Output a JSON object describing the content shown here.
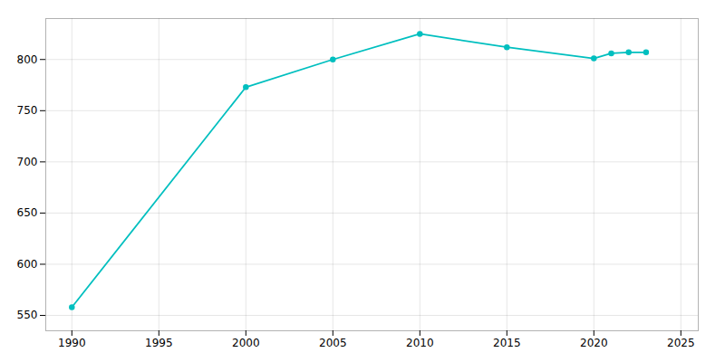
{
  "chart_data": {
    "type": "line",
    "x": [
      1990,
      2000,
      2005,
      2010,
      2015,
      2020,
      2021,
      2022,
      2023
    ],
    "values": [
      558,
      773,
      800,
      825,
      812,
      801,
      806,
      807,
      807
    ],
    "color": "#00BFBF",
    "marker": "circle",
    "xlim": [
      1988.5,
      2026
    ],
    "ylim": [
      535,
      840
    ],
    "xticks": [
      1990,
      1995,
      2000,
      2005,
      2010,
      2015,
      2020,
      2025
    ],
    "yticks": [
      550,
      600,
      650,
      700,
      750,
      800
    ],
    "grid": true
  }
}
